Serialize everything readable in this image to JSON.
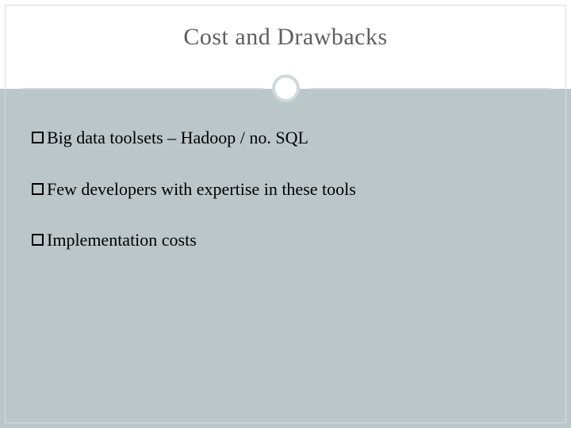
{
  "slide": {
    "title": "Cost and Drawbacks",
    "title_color": "#5e5e5e",
    "title_fontsize": 30,
    "background_top": "#ffffff",
    "background_body": "#bac6ca",
    "divider_color": "#cfd9dc",
    "outer_border_color": "#dcdcdc",
    "bullet_color": "#000000",
    "bullet_fontsize": 22,
    "bullets": [
      {
        "text": "Big data toolsets – Hadoop / no. SQL"
      },
      {
        "text": "Few developers with expertise in these tools"
      },
      {
        "text": "Implementation costs"
      }
    ]
  }
}
